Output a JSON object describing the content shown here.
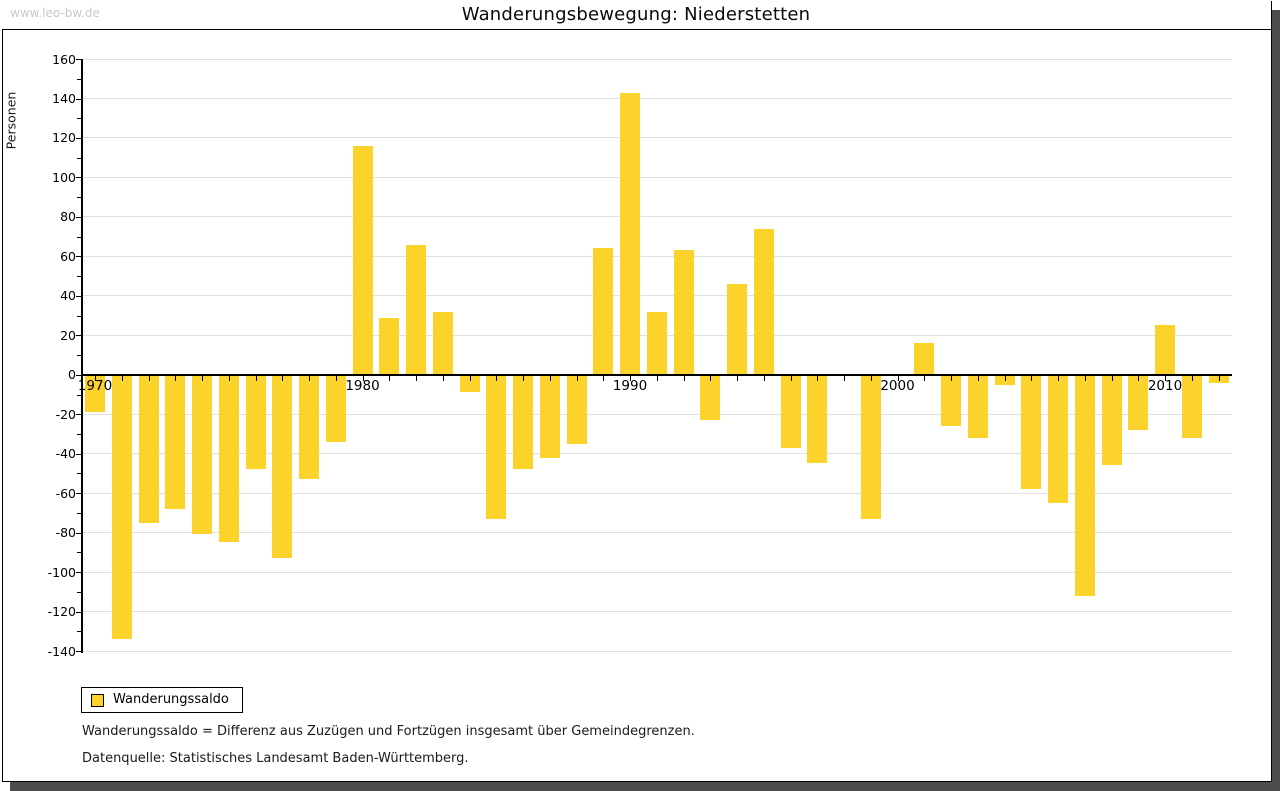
{
  "window": {
    "watermark": "www.leo-bw.de"
  },
  "footnotes": [
    "Wanderungssaldo = Differenz aus Zuzügen und Fortzügen insgesamt über Gemeindegrenzen.",
    "Datenquelle: Statistisches Landesamt Baden-Württemberg."
  ],
  "colors": {
    "bar": "#FCD32B",
    "gridline": "#E0E0E0",
    "axis": "#000000",
    "frame": "#000000",
    "shadow": "#4D4D4D",
    "watermark": "#C9C9C9"
  },
  "chart_data": {
    "type": "bar",
    "title": "Wanderungsbewegung: Niederstetten",
    "ylabel": "Personen",
    "xlabel": "",
    "categories": [
      1970,
      1971,
      1972,
      1973,
      1974,
      1975,
      1976,
      1977,
      1978,
      1979,
      1980,
      1981,
      1982,
      1983,
      1984,
      1985,
      1986,
      1987,
      1988,
      1989,
      1990,
      1991,
      1992,
      1993,
      1994,
      1995,
      1996,
      1997,
      1998,
      1999,
      2000,
      2001,
      2002,
      2003,
      2004,
      2005,
      2006,
      2007,
      2008,
      2009,
      2010,
      2011,
      2012
    ],
    "series": [
      {
        "name": "Wanderungssaldo",
        "values": [
          -19,
          -134,
          -75,
          -68,
          -81,
          -85,
          -48,
          -93,
          -53,
          -34,
          116,
          29,
          66,
          32,
          -9,
          -73,
          -48,
          -42,
          -35,
          64,
          143,
          32,
          63,
          -23,
          46,
          74,
          -37,
          -45,
          0,
          -73,
          0,
          16,
          -26,
          -32,
          -5,
          -58,
          -65,
          -112,
          -46,
          -28,
          25,
          -32,
          -4
        ]
      }
    ],
    "ylim": [
      -140,
      160
    ],
    "ytick_step": 20,
    "y_minor_tick_step": 10,
    "yticks": [
      "160",
      "140",
      "120",
      "100",
      "80",
      "60",
      "40",
      "20",
      "0",
      "-20",
      "-40",
      "-60",
      "-80",
      "-100",
      "-120",
      "-140"
    ],
    "xticks_labeled": [
      "1970",
      "1980",
      "1990",
      "2000",
      "2010"
    ],
    "grid": true,
    "legend_position": "bottom-left",
    "years_with_no_bar": [
      1998,
      2000
    ]
  }
}
